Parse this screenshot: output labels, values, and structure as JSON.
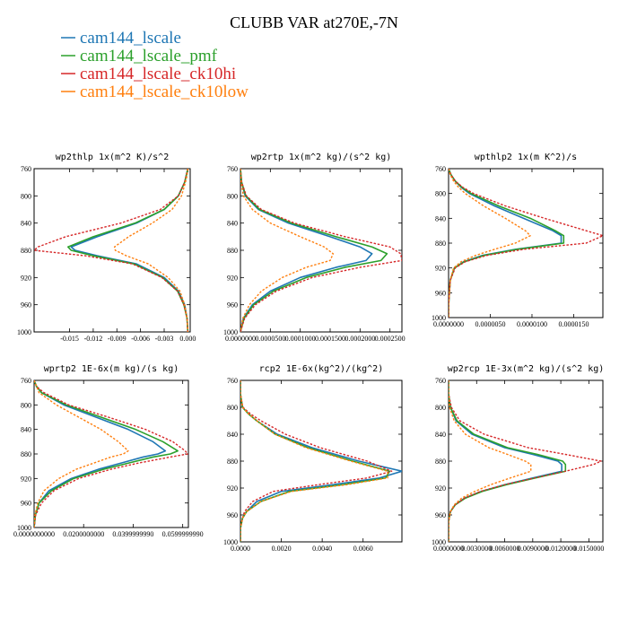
{
  "title": "CLUBB VAR at270E,-7N",
  "legend": [
    {
      "name": "cam144_lscale",
      "color": "#1f77b4"
    },
    {
      "name": "cam144_lscale_pmf",
      "color": "#2ca02c"
    },
    {
      "name": "cam144_lscale_ck10hi",
      "color": "#d62728"
    },
    {
      "name": "cam144_lscale_ck10low",
      "color": "#ff7f0e"
    }
  ],
  "chart_data": [
    {
      "type": "line",
      "title": "wp2thlp  1x(m^2 K)/s^2",
      "xlim": [
        -0.0195,
        0.0003
      ],
      "ylim": [
        760,
        1000
      ],
      "xticks": [
        -0.015,
        -0.012,
        -0.009,
        -0.006,
        -0.003,
        0.0
      ],
      "xtick_labels": [
        "-0.015",
        "-0.012",
        "-0.009",
        "-0.006",
        "-0.003",
        "0.000"
      ],
      "yticks": [
        760,
        800,
        840,
        880,
        920,
        960,
        1000
      ],
      "y": [
        760,
        770,
        780,
        800,
        820,
        840,
        860,
        875,
        880,
        888,
        900,
        920,
        940,
        960,
        980,
        1000
      ],
      "series": [
        {
          "name": "cam144_lscale",
          "values": [
            0.0,
            -0.0002,
            -0.0004,
            -0.0012,
            -0.003,
            -0.0065,
            -0.0115,
            -0.0148,
            -0.0143,
            -0.0115,
            -0.0065,
            -0.003,
            -0.0012,
            -0.0004,
            -0.0001,
            0.0
          ]
        },
        {
          "name": "cam144_lscale_pmf",
          "values": [
            0.0,
            -0.0002,
            -0.0004,
            -0.0012,
            -0.003,
            -0.0067,
            -0.012,
            -0.0152,
            -0.0148,
            -0.012,
            -0.0068,
            -0.0032,
            -0.0013,
            -0.0005,
            -0.0001,
            0.0
          ]
        },
        {
          "name": "cam144_lscale_ck10hi",
          "values": [
            0.0,
            -0.0002,
            -0.0004,
            -0.0012,
            -0.0035,
            -0.0085,
            -0.0155,
            -0.019,
            -0.0195,
            -0.013,
            -0.007,
            -0.0033,
            -0.0013,
            -0.0005,
            -0.0001,
            0.0
          ]
        },
        {
          "name": "cam144_lscale_ck10low",
          "values": [
            0.0,
            -0.0001,
            -0.0003,
            -0.0008,
            -0.002,
            -0.0045,
            -0.0075,
            -0.0093,
            -0.0092,
            -0.0078,
            -0.005,
            -0.0025,
            -0.001,
            -0.0004,
            -0.0001,
            0.0
          ]
        }
      ]
    },
    {
      "type": "line",
      "title": "wp2rtp  1x(m^2 kg)/(s^2 kg)",
      "xlim": [
        0.0,
        0.00027
      ],
      "ylim": [
        760,
        1000
      ],
      "xticks": [
        0.0,
        5e-05,
        0.0001,
        0.00015,
        0.0002,
        0.00025
      ],
      "xtick_labels": [
        "0.0000000",
        "0.0000500",
        "0.0001000",
        "0.0001500",
        "0.0002000",
        "0.0002500"
      ],
      "yticks": [
        760,
        800,
        840,
        880,
        920,
        960,
        1000
      ],
      "y": [
        760,
        780,
        800,
        820,
        840,
        860,
        875,
        885,
        895,
        905,
        920,
        940,
        960,
        980,
        1000
      ],
      "series": [
        {
          "name": "cam144_lscale",
          "values": [
            0.0,
            2e-06,
            8e-06,
            3e-05,
            8e-05,
            0.00015,
            0.0002,
            0.00022,
            0.00021,
            0.00016,
            0.0001,
            5e-05,
            2e-05,
            5e-06,
            0.0
          ]
        },
        {
          "name": "cam144_lscale_pmf",
          "values": [
            0.0,
            2e-06,
            9e-06,
            3.2e-05,
            8.5e-05,
            0.00016,
            0.00022,
            0.000245,
            0.000235,
            0.000175,
            0.00011,
            5.5e-05,
            2.2e-05,
            6e-06,
            0.0
          ]
        },
        {
          "name": "cam144_lscale_ck10hi",
          "values": [
            0.0,
            2e-06,
            1e-05,
            3.5e-05,
            9e-05,
            0.000175,
            0.00025,
            0.000268,
            0.00027,
            0.0002,
            0.00012,
            6e-05,
            2.5e-05,
            7e-06,
            0.0
          ]
        },
        {
          "name": "cam144_lscale_ck10low",
          "values": [
            0.0,
            1e-06,
            5e-06,
            2e-05,
            5e-05,
            0.0001,
            0.00014,
            0.000155,
            0.00015,
            0.00011,
            7e-05,
            3.5e-05,
            1.5e-05,
            4e-06,
            0.0
          ]
        }
      ]
    },
    {
      "type": "line",
      "title": "wpthlp2  1x(m K^2)/s",
      "xlim": [
        0.0,
        1.85e-05
      ],
      "ylim": [
        760,
        1000
      ],
      "xticks": [
        0.0,
        5e-06,
        1e-05,
        1.5e-05
      ],
      "xtick_labels": [
        "0.0000000",
        "0.0000050",
        "0.0000100",
        "0.0000150"
      ],
      "yticks": [
        760,
        800,
        840,
        880,
        920,
        960,
        1000
      ],
      "y": [
        760,
        770,
        780,
        790,
        800,
        820,
        840,
        860,
        868,
        880,
        890,
        900,
        910,
        920,
        940,
        960,
        980,
        1000
      ],
      "series": [
        {
          "name": "cam144_lscale",
          "values": [
            0.0,
            3e-07,
            8e-07,
            1.5e-06,
            2.5e-06,
            5.5e-06,
            9e-06,
            1.25e-05,
            1.35e-05,
            1.35e-05,
            8e-06,
            4e-06,
            1.8e-06,
            7e-07,
            2e-07,
            1e-07,
            0.0,
            0.0
          ]
        },
        {
          "name": "cam144_lscale_pmf",
          "values": [
            0.0,
            3e-07,
            8e-07,
            1.6e-06,
            2.7e-06,
            6e-06,
            9.8e-06,
            1.28e-05,
            1.38e-05,
            1.38e-05,
            8.2e-06,
            4.2e-06,
            1.9e-06,
            7e-07,
            2e-07,
            1e-07,
            0.0,
            0.0
          ]
        },
        {
          "name": "cam144_lscale_ck10hi",
          "values": [
            0.0,
            3e-07,
            8e-07,
            1.7e-06,
            3e-06,
            6.8e-06,
            1.15e-05,
            1.65e-05,
            1.85e-05,
            1.65e-05,
            9e-06,
            4.5e-06,
            2e-06,
            8e-07,
            2e-07,
            1e-07,
            0.0,
            0.0
          ]
        },
        {
          "name": "cam144_lscale_ck10low",
          "values": [
            0.0,
            2e-07,
            6e-07,
            1.2e-06,
            2e-06,
            4.2e-06,
            6.8e-06,
            9.2e-06,
            9.8e-06,
            8e-06,
            5.5e-06,
            3.2e-06,
            1.5e-06,
            6e-07,
            2e-07,
            1e-07,
            0.0,
            0.0
          ]
        }
      ]
    },
    {
      "type": "line",
      "title": "wprtp2  1E-6x(m kg)/(s kg)",
      "xlim": [
        0.0,
        0.0623
      ],
      "ylim": [
        760,
        1000
      ],
      "xticks": [
        0.0,
        0.02,
        0.04,
        0.06
      ],
      "xtick_labels": [
        "0.0000000000",
        "0.0200000000",
        "0.0399999990",
        "0.0599999990"
      ],
      "yticks": [
        760,
        800,
        840,
        880,
        920,
        960,
        1000
      ],
      "y": [
        760,
        770,
        780,
        800,
        820,
        840,
        860,
        875,
        880,
        885,
        895,
        905,
        920,
        940,
        960,
        980,
        1000
      ],
      "series": [
        {
          "name": "cam144_lscale",
          "values": [
            0.0,
            0.001,
            0.003,
            0.012,
            0.025,
            0.038,
            0.048,
            0.053,
            0.05,
            0.044,
            0.035,
            0.026,
            0.015,
            0.006,
            0.002,
            0.0005,
            0.0
          ]
        },
        {
          "name": "cam144_lscale_pmf",
          "values": [
            0.0,
            0.001,
            0.003,
            0.013,
            0.027,
            0.041,
            0.052,
            0.058,
            0.055,
            0.048,
            0.038,
            0.028,
            0.016,
            0.007,
            0.002,
            0.0005,
            0.0
          ]
        },
        {
          "name": "cam144_lscale_ck10hi",
          "values": [
            0.0,
            0.001,
            0.004,
            0.014,
            0.03,
            0.045,
            0.056,
            0.061,
            0.062,
            0.055,
            0.042,
            0.031,
            0.018,
            0.008,
            0.003,
            0.0006,
            0.0
          ]
        },
        {
          "name": "cam144_lscale_ck10low",
          "values": [
            0.0,
            0.001,
            0.002,
            0.009,
            0.018,
            0.027,
            0.034,
            0.038,
            0.036,
            0.031,
            0.024,
            0.017,
            0.01,
            0.004,
            0.0015,
            0.0003,
            0.0
          ]
        }
      ]
    },
    {
      "type": "line",
      "title": "rcp2  1E-6x(kg^2)/(kg^2)",
      "xlim": [
        0.0,
        0.0079
      ],
      "ylim": [
        760,
        1000
      ],
      "xticks": [
        0.0,
        0.002,
        0.004,
        0.006
      ],
      "xtick_labels": [
        "0.0000",
        "0.0020",
        "0.0040",
        "0.0060"
      ],
      "yticks": [
        760,
        800,
        840,
        880,
        920,
        960,
        1000
      ],
      "y": [
        760,
        780,
        790,
        800,
        810,
        820,
        840,
        860,
        880,
        895,
        905,
        915,
        925,
        940,
        955,
        965,
        980,
        1000
      ],
      "series": [
        {
          "name": "cam144_lscale",
          "values": [
            0.0,
            0.0,
            5e-05,
            0.0001,
            0.0004,
            0.0008,
            0.0018,
            0.0035,
            0.0058,
            0.0079,
            0.0068,
            0.0045,
            0.002,
            0.0008,
            0.0003,
            0.0001,
            0.0,
            0.0
          ]
        },
        {
          "name": "cam144_lscale_pmf",
          "values": [
            0.0,
            0.0,
            5e-05,
            0.0001,
            0.0004,
            0.0008,
            0.0017,
            0.0033,
            0.0055,
            0.0073,
            0.0071,
            0.005,
            0.0024,
            0.001,
            0.0003,
            0.0001,
            0.0,
            0.0
          ]
        },
        {
          "name": "cam144_lscale_ck10hi",
          "values": [
            0.0,
            0.0,
            6e-05,
            0.00012,
            0.0005,
            0.001,
            0.0022,
            0.0039,
            0.0062,
            0.0074,
            0.0062,
            0.0038,
            0.0016,
            0.0006,
            0.0002,
            0.0001,
            0.0,
            0.0
          ]
        },
        {
          "name": "cam144_lscale_ck10low",
          "values": [
            0.0,
            0.0,
            5e-05,
            0.0001,
            0.0004,
            0.0008,
            0.0017,
            0.0032,
            0.0054,
            0.0072,
            0.0072,
            0.0052,
            0.0025,
            0.001,
            0.0003,
            0.0001,
            0.0,
            0.0
          ]
        }
      ]
    },
    {
      "type": "line",
      "title": "wp2rcp  1E-3x(m^2 kg)/(s^2 kg)",
      "xlim": [
        0.0,
        0.0165
      ],
      "ylim": [
        760,
        1000
      ],
      "xticks": [
        0.0,
        0.003,
        0.006,
        0.009,
        0.012,
        0.015
      ],
      "xtick_labels": [
        "0.0000000",
        "0.0030000",
        "0.0060000",
        "0.0090000",
        "0.0120000",
        "0.0150000"
      ],
      "yticks": [
        760,
        800,
        840,
        880,
        920,
        960,
        1000
      ],
      "y": [
        760,
        780,
        800,
        820,
        840,
        860,
        870,
        880,
        885,
        895,
        905,
        915,
        925,
        935,
        945,
        955,
        970,
        1000
      ],
      "series": [
        {
          "name": "cam144_lscale",
          "values": [
            0.0,
            0.0,
            0.0002,
            0.0008,
            0.0025,
            0.006,
            0.009,
            0.0117,
            0.0121,
            0.0121,
            0.009,
            0.006,
            0.0035,
            0.0017,
            0.0007,
            0.0002,
            0.0,
            0.0
          ]
        },
        {
          "name": "cam144_lscale_pmf",
          "values": [
            0.0,
            0.0,
            0.0002,
            0.0009,
            0.0027,
            0.0063,
            0.0095,
            0.0122,
            0.0125,
            0.0125,
            0.0093,
            0.0062,
            0.0036,
            0.0018,
            0.0007,
            0.0002,
            0.0,
            0.0
          ]
        },
        {
          "name": "cam144_lscale_ck10hi",
          "values": [
            0.0,
            0.0,
            0.0003,
            0.0012,
            0.0038,
            0.0085,
            0.0125,
            0.0163,
            0.0155,
            0.0125,
            0.0092,
            0.006,
            0.0034,
            0.0017,
            0.0007,
            0.0002,
            0.0,
            0.0
          ]
        },
        {
          "name": "cam144_lscale_ck10low",
          "values": [
            0.0,
            0.0,
            0.0001,
            0.0006,
            0.0018,
            0.0043,
            0.0063,
            0.0082,
            0.0088,
            0.0088,
            0.0066,
            0.0045,
            0.0028,
            0.0014,
            0.0006,
            0.0002,
            0.0,
            0.0
          ]
        }
      ]
    }
  ]
}
